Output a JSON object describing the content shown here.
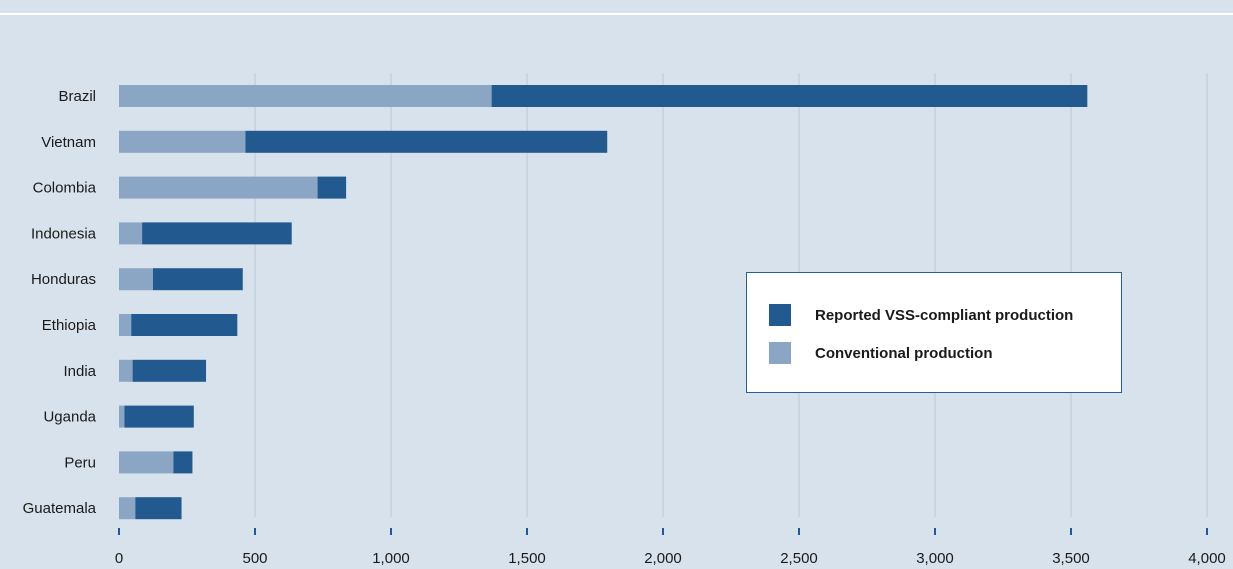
{
  "chart_data": {
    "type": "bar",
    "orientation": "horizontal",
    "stacked": true,
    "categories": [
      "Brazil",
      "Vietnam",
      "Colombia",
      "Indonesia",
      "Honduras",
      "Ethiopia",
      "India",
      "Uganda",
      "Peru",
      "Guatemala"
    ],
    "series": [
      {
        "name": "Conventional production",
        "color": "#8aa6c4",
        "values": [
          1370,
          465,
          730,
          85,
          125,
          45,
          50,
          20,
          200,
          60
        ]
      },
      {
        "name": "Reported VSS-compliant production",
        "color": "#225a8f",
        "values": [
          2190,
          1330,
          105,
          550,
          330,
          390,
          270,
          255,
          70,
          170
        ]
      }
    ],
    "xlim": [
      0,
      4000
    ],
    "xticks": [
      0,
      500,
      1000,
      1500,
      2000,
      2500,
      3000,
      3500,
      4000
    ],
    "xtick_labels": [
      "0",
      "500",
      "1,000",
      "1,500",
      "2,000",
      "2,500",
      "3,000",
      "3,500",
      "4,000"
    ],
    "grid": true,
    "legend_position": "right"
  },
  "legend": {
    "items": [
      {
        "label": "Reported VSS-compliant production",
        "color": "#225a8f"
      },
      {
        "label": "Conventional production",
        "color": "#8aa6c4"
      }
    ]
  }
}
